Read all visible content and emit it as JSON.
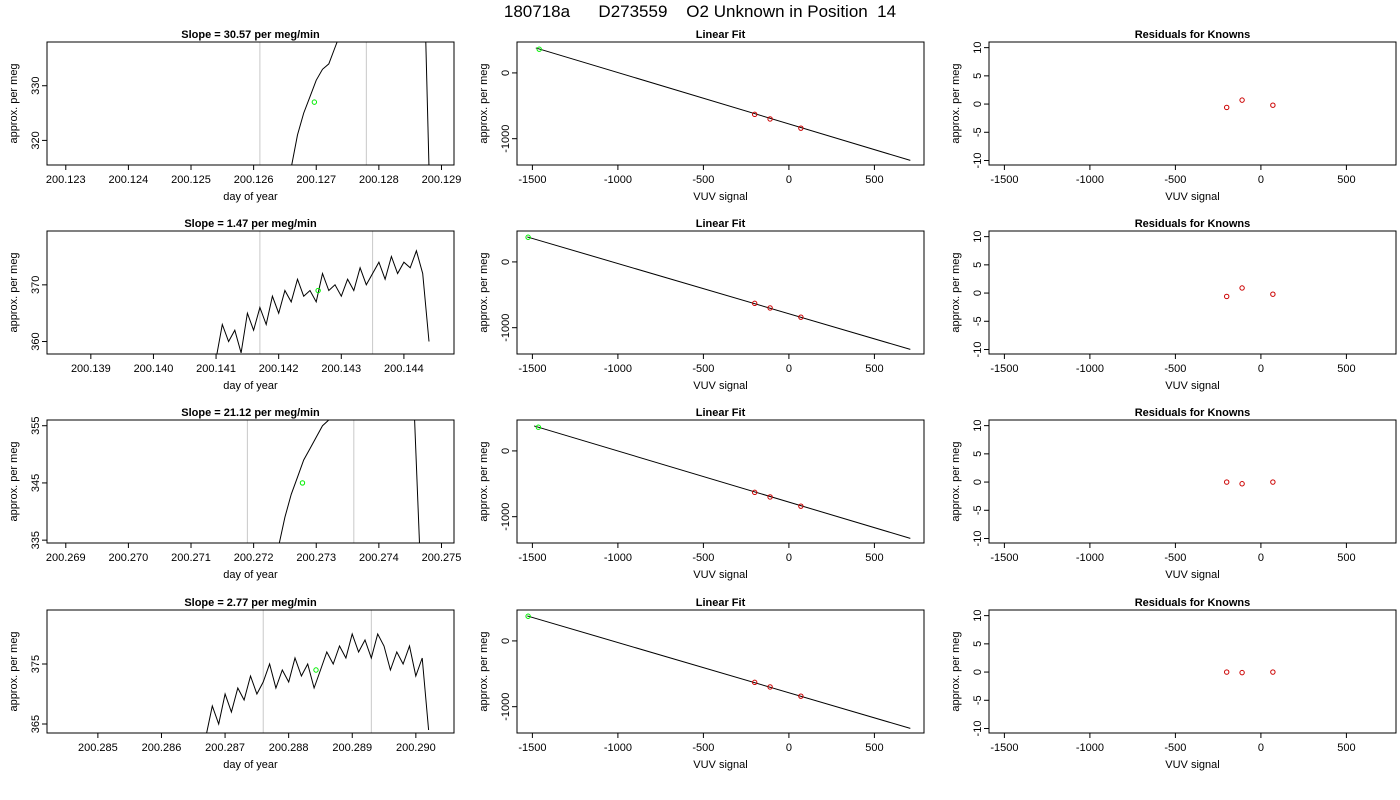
{
  "figure": {
    "title": "180718a      D273559    O2 Unknown in Position  14"
  },
  "colors": {
    "line": "#000000",
    "marker_unknown": "#00ee00",
    "marker_known": "#cc0000",
    "vline": "#c8c8c8"
  },
  "chart_data": [
    {
      "type": "line",
      "title": "Slope =  30.57  per meg/min",
      "xlabel": "day of year",
      "ylabel": "approx. per meg",
      "xlim": [
        200.1227,
        200.1292
      ],
      "ylim": [
        315.5,
        338
      ],
      "xticks": [
        "200.123",
        "200.124",
        "200.125",
        "200.126",
        "200.127",
        "200.128",
        "200.129"
      ],
      "yticks": [
        "320",
        "330"
      ],
      "vlines": [
        200.1261,
        200.1278
      ],
      "series": [
        {
          "x": [
            200.1266,
            200.1267,
            200.1268,
            200.1269,
            200.127,
            200.1271,
            200.1272,
            200.1273,
            200.1274
          ],
          "y": [
            315,
            321,
            325,
            328,
            331,
            333,
            334,
            337,
            340
          ]
        },
        {
          "x": [
            200.12875,
            200.1288
          ],
          "y": [
            338,
            315
          ]
        }
      ],
      "points": [
        {
          "x": 200.12697,
          "y": 327
        }
      ]
    },
    {
      "type": "scatter",
      "title": "Linear Fit",
      "xlabel": "VUV signal",
      "ylabel": "approx. per meg",
      "xlim": [
        -1590,
        790
      ],
      "ylim": [
        -1400,
        470
      ],
      "xticks": [
        "-1500",
        "-1000",
        "-500",
        "0",
        "500"
      ],
      "yticks": [
        "-1000",
        "0"
      ],
      "fit_line": {
        "x": [
          -1480,
          710
        ],
        "y": [
          380,
          -1330
        ]
      },
      "unknown_points": [
        {
          "x": -1460,
          "y": 360
        }
      ],
      "known_points": [
        {
          "x": -200,
          "y": -630
        },
        {
          "x": -110,
          "y": -700
        },
        {
          "x": 70,
          "y": -840
        }
      ]
    },
    {
      "type": "scatter",
      "title": "Residuals for Knowns",
      "xlabel": "VUV signal",
      "ylabel": "approx. per meg",
      "xlim": [
        -1590,
        790
      ],
      "ylim": [
        -10.8,
        11
      ],
      "xticks": [
        "-1500",
        "-1000",
        "-500",
        "0",
        "500"
      ],
      "yticks": [
        "-10",
        "-5",
        "0",
        "5",
        "10"
      ],
      "known_points": [
        {
          "x": -200,
          "y": -0.6
        },
        {
          "x": -110,
          "y": 0.7
        },
        {
          "x": 70,
          "y": -0.2
        }
      ]
    },
    {
      "type": "line",
      "title": "Slope =  1.47  per meg/min",
      "xlabel": "day of year",
      "ylabel": "approx. per meg",
      "xlim": [
        200.1383,
        200.1448
      ],
      "ylim": [
        357.8,
        379.5
      ],
      "xticks": [
        "200.139",
        "200.140",
        "200.141",
        "200.142",
        "200.143",
        "200.144"
      ],
      "yticks": [
        "360",
        "370"
      ],
      "vlines": [
        200.1417,
        200.1435
      ],
      "series": [
        {
          "x": [
            200.141,
            200.1411,
            200.1412,
            200.1413,
            200.1414,
            200.1415,
            200.1416,
            200.1417,
            200.1418,
            200.1419,
            200.142,
            200.1421,
            200.1422,
            200.1423,
            200.1424,
            200.1425,
            200.1426,
            200.1427,
            200.1428,
            200.1429,
            200.143,
            200.1431,
            200.1432,
            200.1433,
            200.1434,
            200.1435,
            200.1436,
            200.1437,
            200.1438,
            200.1439,
            200.144,
            200.1441,
            200.1442,
            200.1443,
            200.1444
          ],
          "y": [
            357,
            363,
            360,
            362,
            358,
            365,
            362,
            366,
            363,
            368,
            365,
            369,
            367,
            371,
            368,
            369,
            367,
            372,
            369,
            370,
            368,
            371,
            369,
            373,
            370,
            372,
            374,
            371,
            375,
            372,
            374,
            373,
            376,
            372,
            360
          ]
        }
      ],
      "points": [
        {
          "x": 200.14263,
          "y": 369
        }
      ]
    },
    {
      "type": "scatter",
      "title": "Linear Fit",
      "xlabel": "VUV signal",
      "ylabel": "approx. per meg",
      "xlim": [
        -1590,
        790
      ],
      "ylim": [
        -1400,
        470
      ],
      "xticks": [
        "-1500",
        "-1000",
        "-500",
        "0",
        "500"
      ],
      "yticks": [
        "-1000",
        "0"
      ],
      "fit_line": {
        "x": [
          -1530,
          710
        ],
        "y": [
          380,
          -1330
        ]
      },
      "unknown_points": [
        {
          "x": -1525,
          "y": 375
        }
      ],
      "known_points": [
        {
          "x": -200,
          "y": -630
        },
        {
          "x": -110,
          "y": -700
        },
        {
          "x": 70,
          "y": -840
        }
      ]
    },
    {
      "type": "scatter",
      "title": "Residuals for Knowns",
      "xlabel": "VUV signal",
      "ylabel": "approx. per meg",
      "xlim": [
        -1590,
        790
      ],
      "ylim": [
        -10.8,
        11
      ],
      "xticks": [
        "-1500",
        "-1000",
        "-500",
        "0",
        "500"
      ],
      "yticks": [
        "-10",
        "-5",
        "0",
        "5",
        "10"
      ],
      "known_points": [
        {
          "x": -200,
          "y": -0.6
        },
        {
          "x": -110,
          "y": 0.9
        },
        {
          "x": 70,
          "y": -0.2
        }
      ]
    },
    {
      "type": "line",
      "title": "Slope =  21.12  per meg/min",
      "xlabel": "day of year",
      "ylabel": "approx. per meg",
      "xlim": [
        200.2687,
        200.2752
      ],
      "ylim": [
        334.5,
        356
      ],
      "xticks": [
        "200.269",
        "200.270",
        "200.271",
        "200.272",
        "200.273",
        "200.274",
        "200.275"
      ],
      "yticks": [
        "335",
        "345",
        "355"
      ],
      "vlines": [
        200.2719,
        200.2736
      ],
      "series": [
        {
          "x": [
            200.2724,
            200.2725,
            200.2726,
            200.2727,
            200.2728,
            200.2729,
            200.273,
            200.2731,
            200.2732,
            200.2733
          ],
          "y": [
            334,
            339,
            343,
            346,
            349,
            351,
            353,
            355,
            356,
            357
          ]
        },
        {
          "x": [
            200.27457,
            200.27465
          ],
          "y": [
            356,
            334
          ]
        }
      ],
      "points": [
        {
          "x": 200.27278,
          "y": 345
        }
      ]
    },
    {
      "type": "scatter",
      "title": "Linear Fit",
      "xlabel": "VUV signal",
      "ylabel": "approx. per meg",
      "xlim": [
        -1590,
        790
      ],
      "ylim": [
        -1400,
        470
      ],
      "xticks": [
        "-1500",
        "-1000",
        "-500",
        "0",
        "500"
      ],
      "yticks": [
        "-1000",
        "0"
      ],
      "fit_line": {
        "x": [
          -1490,
          710
        ],
        "y": [
          380,
          -1330
        ]
      },
      "unknown_points": [
        {
          "x": -1465,
          "y": 360
        }
      ],
      "known_points": [
        {
          "x": -200,
          "y": -630
        },
        {
          "x": -110,
          "y": -700
        },
        {
          "x": 70,
          "y": -840
        }
      ]
    },
    {
      "type": "scatter",
      "title": "Residuals for Knowns",
      "xlabel": "VUV signal",
      "ylabel": "approx. per meg",
      "xlim": [
        -1590,
        790
      ],
      "ylim": [
        -10.8,
        11
      ],
      "xticks": [
        "-1500",
        "-1000",
        "-500",
        "0",
        "500"
      ],
      "yticks": [
        "-10",
        "-5",
        "0",
        "5",
        "10"
      ],
      "known_points": [
        {
          "x": -200,
          "y": 0.0
        },
        {
          "x": -110,
          "y": -0.3
        },
        {
          "x": 70,
          "y": 0.0
        }
      ]
    },
    {
      "type": "line",
      "title": "Slope =  2.77  per meg/min",
      "xlabel": "day of year",
      "ylabel": "approx. per meg",
      "xlim": [
        200.2842,
        200.2906
      ],
      "ylim": [
        363.5,
        384
      ],
      "xticks": [
        "200.285",
        "200.286",
        "200.287",
        "200.288",
        "200.289",
        "200.290"
      ],
      "yticks": [
        "365",
        "375"
      ],
      "vlines": [
        200.2876,
        200.2893
      ],
      "series": [
        {
          "x": [
            200.2867,
            200.2868,
            200.2869,
            200.287,
            200.2871,
            200.2872,
            200.2873,
            200.2874,
            200.2875,
            200.2876,
            200.2877,
            200.2878,
            200.2879,
            200.288,
            200.2881,
            200.2882,
            200.2883,
            200.2884,
            200.2885,
            200.2886,
            200.2887,
            200.2888,
            200.2889,
            200.289,
            200.2891,
            200.2892,
            200.2893,
            200.2894,
            200.2895,
            200.2896,
            200.2897,
            200.2898,
            200.2899,
            200.29,
            200.2901,
            200.2902
          ],
          "y": [
            363,
            368,
            365,
            370,
            367,
            371,
            369,
            373,
            370,
            372,
            375,
            371,
            374,
            372,
            376,
            373,
            375,
            371,
            374,
            377,
            375,
            378,
            376,
            380,
            377,
            379,
            376,
            380,
            378,
            374,
            377,
            375,
            378,
            373,
            376,
            364
          ]
        }
      ],
      "points": [
        {
          "x": 200.28843,
          "y": 374
        }
      ]
    },
    {
      "type": "scatter",
      "title": "Linear Fit",
      "xlabel": "VUV signal",
      "ylabel": "approx. per meg",
      "xlim": [
        -1590,
        790
      ],
      "ylim": [
        -1400,
        470
      ],
      "xticks": [
        "-1500",
        "-1000",
        "-500",
        "0",
        "500"
      ],
      "yticks": [
        "-1000",
        "0"
      ],
      "fit_line": {
        "x": [
          -1530,
          710
        ],
        "y": [
          380,
          -1330
        ]
      },
      "unknown_points": [
        {
          "x": -1525,
          "y": 375
        }
      ],
      "known_points": [
        {
          "x": -200,
          "y": -630
        },
        {
          "x": -110,
          "y": -700
        },
        {
          "x": 70,
          "y": -840
        }
      ]
    },
    {
      "type": "scatter",
      "title": "Residuals for Knowns",
      "xlabel": "VUV signal",
      "ylabel": "approx. per meg",
      "xlim": [
        -1590,
        790
      ],
      "ylim": [
        -10.8,
        11
      ],
      "xticks": [
        "-1500",
        "-1000",
        "-500",
        "0",
        "500"
      ],
      "yticks": [
        "-10",
        "-5",
        "0",
        "5",
        "10"
      ],
      "known_points": [
        {
          "x": -200,
          "y": 0.0
        },
        {
          "x": -110,
          "y": -0.1
        },
        {
          "x": 70,
          "y": 0.0
        }
      ]
    }
  ]
}
